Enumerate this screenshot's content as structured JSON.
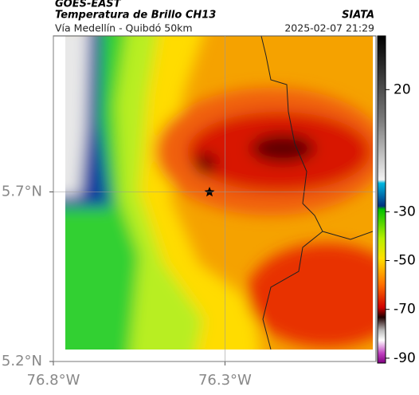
{
  "header": {
    "satellite": "GOES-EAST",
    "product": "Temperatura de Brillo CH13",
    "source": "SIATA",
    "region": "Vía Medellín - Quibdó 50km",
    "datetime": "2025-02-07 21:29"
  },
  "map": {
    "xlim": [
      -76.8,
      -75.86
    ],
    "ylim": [
      5.2,
      6.16
    ],
    "xticks": [
      {
        "value": -76.8,
        "label": "76.8°W"
      },
      {
        "value": -76.3,
        "label": "76.3°W"
      }
    ],
    "yticks": [
      {
        "value": 5.2,
        "label": "5.2°N"
      },
      {
        "value": 5.7,
        "label": "5.7°N"
      }
    ],
    "colorbar": {
      "lim": [
        -92,
        42
      ],
      "ticks": [
        20,
        -30,
        -50,
        -70,
        -90
      ]
    }
  }
}
